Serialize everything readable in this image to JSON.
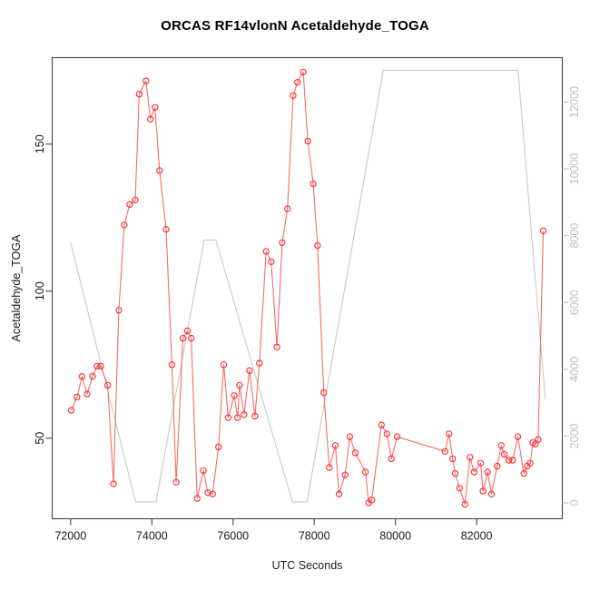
{
  "title": "ORCAS RF14vlonN Acetaldehyde_TOGA",
  "colors": {
    "series_red_line": "#f96a6a",
    "series_red_marker": "#f53b3b",
    "altitude_gray": "#c9c9c9",
    "right_axis_gray": "#bdbdbd",
    "axis_black": "#444444",
    "tick_text": "#1a1a1a"
  },
  "chart_data": {
    "type": "line",
    "title": "ORCAS RF14vlonN Acetaldehyde_TOGA",
    "xlabel": "UTC Seconds",
    "ylabel": "Acetaldehyde_TOGA",
    "ylabel_right": "",
    "grid": false,
    "legend_position": "none",
    "xlim": [
      71545,
      84110
    ],
    "ylim": [
      22.6,
      179.4
    ],
    "ylim_right": [
      -475,
      13330
    ],
    "x_ticks": [
      72000,
      74000,
      76000,
      78000,
      80000,
      82000
    ],
    "y_ticks_left": [
      50,
      100,
      150
    ],
    "y_ticks_right": [
      0,
      2000,
      4000,
      6000,
      8000,
      10000,
      12000
    ],
    "series": [
      {
        "name": "Acetaldehyde_TOGA",
        "axis": "left",
        "marker": "open-circle",
        "points": [
          [
            72015,
            59.5
          ],
          [
            72155,
            64
          ],
          [
            72280,
            71
          ],
          [
            72405,
            65
          ],
          [
            72540,
            71
          ],
          [
            72650,
            74.5
          ],
          [
            72740,
            74.5
          ],
          [
            72910,
            68
          ],
          [
            73055,
            34.5
          ],
          [
            73185,
            93.5
          ],
          [
            73320,
            122.5
          ],
          [
            73455,
            129.5
          ],
          [
            73590,
            131
          ],
          [
            73690,
            167
          ],
          [
            73855,
            171.5
          ],
          [
            73965,
            158.5
          ],
          [
            74075,
            162.5
          ],
          [
            74190,
            141
          ],
          [
            74350,
            121
          ],
          [
            74495,
            75
          ],
          [
            74600,
            35
          ],
          [
            74765,
            84
          ],
          [
            74875,
            86.5
          ],
          [
            74970,
            84
          ],
          [
            75115,
            29.5
          ],
          [
            75270,
            39
          ],
          [
            75380,
            31.5
          ],
          [
            75495,
            31
          ],
          [
            75640,
            47
          ],
          [
            75770,
            75
          ],
          [
            75880,
            57
          ],
          [
            76030,
            64.5
          ],
          [
            76110,
            57
          ],
          [
            76160,
            68
          ],
          [
            76270,
            58
          ],
          [
            76405,
            73
          ],
          [
            76540,
            57.5
          ],
          [
            76650,
            75.5
          ],
          [
            76815,
            113.5
          ],
          [
            76940,
            110
          ],
          [
            77080,
            81
          ],
          [
            77210,
            116.5
          ],
          [
            77340,
            128
          ],
          [
            77480,
            166.5
          ],
          [
            77585,
            171
          ],
          [
            77730,
            174.5
          ],
          [
            77840,
            151
          ],
          [
            77975,
            136.5
          ],
          [
            78080,
            115.5
          ],
          [
            78235,
            65.5
          ],
          [
            78370,
            40
          ],
          [
            78520,
            47.5
          ],
          [
            78610,
            31
          ],
          [
            78760,
            37.5
          ],
          [
            78875,
            50.5
          ],
          [
            79010,
            45
          ],
          [
            79260,
            38.5
          ],
          [
            79340,
            28
          ],
          [
            79415,
            29
          ],
          [
            79655,
            54.5
          ],
          [
            79790,
            51.5
          ],
          [
            79900,
            43
          ],
          [
            80040,
            50.5
          ],
          [
            81220,
            45.5
          ],
          [
            81320,
            51.5
          ],
          [
            81410,
            43
          ],
          [
            81470,
            38
          ],
          [
            81580,
            33
          ],
          [
            81710,
            27.5
          ],
          [
            81835,
            43.5
          ],
          [
            81940,
            38.5
          ],
          [
            82100,
            41.5
          ],
          [
            82155,
            32
          ],
          [
            82270,
            38.5
          ],
          [
            82365,
            31
          ],
          [
            82505,
            40.5
          ],
          [
            82605,
            47.5
          ],
          [
            82680,
            44.5
          ],
          [
            82790,
            42.5
          ],
          [
            82885,
            42.5
          ],
          [
            83015,
            50.5
          ],
          [
            83165,
            38
          ],
          [
            83245,
            40.5
          ],
          [
            83320,
            41.5
          ],
          [
            83385,
            48.5
          ],
          [
            83445,
            48
          ],
          [
            83515,
            49.5
          ],
          [
            83640,
            120.5
          ]
        ]
      },
      {
        "name": "altitude",
        "axis": "right",
        "marker": "none",
        "points": [
          [
            72000,
            7780
          ],
          [
            73600,
            30
          ],
          [
            74100,
            30
          ],
          [
            75290,
            7870
          ],
          [
            75575,
            7870
          ],
          [
            77460,
            30
          ],
          [
            77820,
            30
          ],
          [
            79700,
            12950
          ],
          [
            83020,
            12950
          ],
          [
            83690,
            3100
          ]
        ]
      }
    ]
  }
}
